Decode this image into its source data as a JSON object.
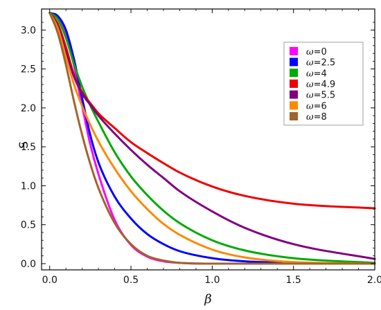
{
  "chart_data": {
    "type": "line",
    "title": "",
    "xlabel": "β",
    "ylabel": "S",
    "xlim": [
      -0.05,
      2.0
    ],
    "ylim": [
      -0.08,
      3.27
    ],
    "x_ticks": [
      "0.0",
      "0.5",
      "1.0",
      "1.5",
      "2.0"
    ],
    "y_ticks": [
      "0.0",
      "0.5",
      "1.0",
      "1.5",
      "2.0",
      "2.5",
      "3.0"
    ],
    "grid": false,
    "legend_position": "top-right",
    "series": [
      {
        "name": "ω=0",
        "color": "#ff00ff",
        "x": [
          0.0,
          0.05,
          0.1,
          0.15,
          0.2,
          0.25,
          0.3,
          0.4,
          0.5,
          0.6,
          0.7,
          0.8,
          1.0,
          1.2,
          1.5,
          2.0
        ],
        "y": [
          3.22,
          3.16,
          2.95,
          2.54,
          2.02,
          1.53,
          1.15,
          0.56,
          0.24,
          0.09,
          0.03,
          0.01,
          0.0,
          0.0,
          0.0,
          0.0
        ]
      },
      {
        "name": "ω=2.5",
        "color": "#0000ff",
        "x": [
          0.0,
          0.05,
          0.1,
          0.15,
          0.2,
          0.25,
          0.3,
          0.4,
          0.5,
          0.6,
          0.7,
          0.8,
          1.0,
          1.2,
          1.5,
          2.0
        ],
        "y": [
          3.22,
          3.18,
          3.0,
          2.62,
          2.12,
          1.65,
          1.3,
          0.86,
          0.58,
          0.38,
          0.25,
          0.16,
          0.07,
          0.03,
          0.01,
          0.0
        ]
      },
      {
        "name": "ω=4",
        "color": "#00aa00",
        "x": [
          0.0,
          0.05,
          0.1,
          0.15,
          0.2,
          0.25,
          0.3,
          0.4,
          0.5,
          0.6,
          0.7,
          0.8,
          1.0,
          1.2,
          1.5,
          2.0
        ],
        "y": [
          3.22,
          3.14,
          2.9,
          2.56,
          2.27,
          2.03,
          1.82,
          1.43,
          1.12,
          0.88,
          0.68,
          0.52,
          0.3,
          0.17,
          0.07,
          0.01
        ]
      },
      {
        "name": "ω=4.9",
        "color": "#ee0000",
        "x": [
          0.0,
          0.05,
          0.1,
          0.15,
          0.2,
          0.25,
          0.3,
          0.4,
          0.5,
          0.6,
          0.7,
          0.8,
          1.0,
          1.2,
          1.5,
          2.0
        ],
        "y": [
          3.22,
          3.08,
          2.78,
          2.42,
          2.2,
          2.06,
          1.93,
          1.74,
          1.56,
          1.42,
          1.29,
          1.17,
          0.99,
          0.87,
          0.77,
          0.71
        ]
      },
      {
        "name": "ω=5.5",
        "color": "#800080",
        "x": [
          0.0,
          0.05,
          0.1,
          0.15,
          0.2,
          0.25,
          0.3,
          0.4,
          0.5,
          0.6,
          0.7,
          0.8,
          1.0,
          1.2,
          1.5,
          2.0
        ],
        "y": [
          3.22,
          3.05,
          2.72,
          2.4,
          2.18,
          2.04,
          1.9,
          1.67,
          1.46,
          1.27,
          1.1,
          0.93,
          0.67,
          0.46,
          0.25,
          0.06
        ]
      },
      {
        "name": "ω=6",
        "color": "#ff8800",
        "x": [
          0.0,
          0.05,
          0.1,
          0.15,
          0.2,
          0.25,
          0.3,
          0.4,
          0.5,
          0.6,
          0.7,
          0.8,
          1.0,
          1.2,
          1.5,
          2.0
        ],
        "y": [
          3.22,
          3.02,
          2.65,
          2.3,
          2.02,
          1.78,
          1.57,
          1.22,
          0.93,
          0.7,
          0.51,
          0.37,
          0.18,
          0.08,
          0.02,
          0.0
        ]
      },
      {
        "name": "ω=8",
        "color": "#a0642c",
        "x": [
          0.0,
          0.05,
          0.1,
          0.15,
          0.2,
          0.25,
          0.3,
          0.4,
          0.5,
          0.6,
          0.7,
          0.8,
          1.0,
          1.2,
          1.5,
          2.0
        ],
        "y": [
          3.22,
          2.96,
          2.55,
          2.08,
          1.65,
          1.28,
          0.97,
          0.52,
          0.25,
          0.1,
          0.04,
          0.01,
          0.0,
          0.0,
          0.0,
          0.0
        ]
      }
    ]
  }
}
